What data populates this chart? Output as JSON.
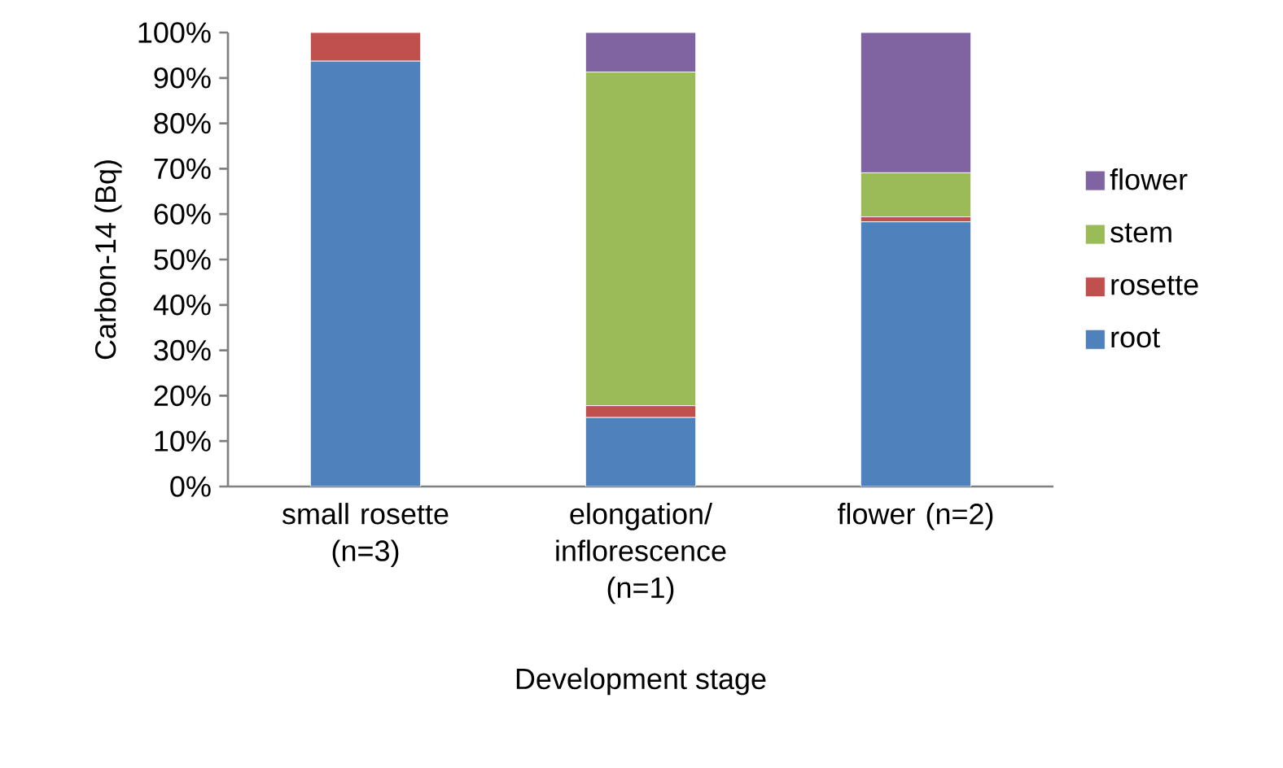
{
  "chart_data": {
    "type": "bar",
    "stacked": true,
    "xlabel": "Development stage",
    "ylabel": "Carbon-14 (Bq)",
    "categories": [
      "small rosette (n=3)",
      "elongation/ inflorescence (n=1)",
      "flower (n=2)"
    ],
    "series": [
      {
        "name": "root",
        "color": "#4f81bd",
        "values": [
          93.7,
          15.2,
          58.3
        ]
      },
      {
        "name": "rosette",
        "color": "#c0504d",
        "values": [
          6.3,
          2.6,
          1.1
        ]
      },
      {
        "name": "stem",
        "color": "#9bbb59",
        "values": [
          0,
          73.5,
          9.7
        ]
      },
      {
        "name": "flower",
        "color": "#8064a2",
        "values": [
          0,
          8.7,
          30.9
        ]
      }
    ],
    "ylim": [
      0,
      100
    ],
    "yticks": [
      {
        "value": 0,
        "label": "0%"
      },
      {
        "value": 10,
        "label": "10%"
      },
      {
        "value": 20,
        "label": "20%"
      },
      {
        "value": 30,
        "label": "30%"
      },
      {
        "value": 40,
        "label": "40%"
      },
      {
        "value": 50,
        "label": "50%"
      },
      {
        "value": 60,
        "label": "60%"
      },
      {
        "value": 70,
        "label": "70%"
      },
      {
        "value": 80,
        "label": "80%"
      },
      {
        "value": 90,
        "label": "90%"
      },
      {
        "value": 100,
        "label": "100%"
      }
    ],
    "grid": false,
    "legend": "right"
  }
}
